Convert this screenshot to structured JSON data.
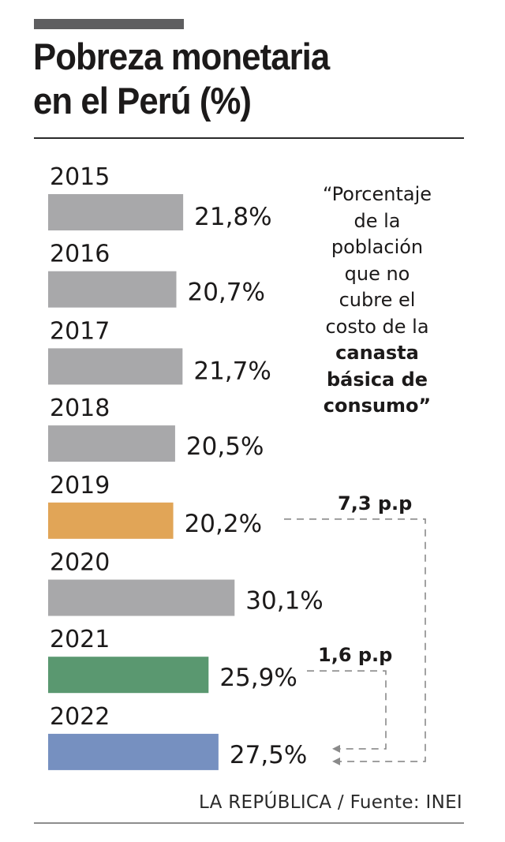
{
  "header": {
    "title_line1": "Pobreza monetaria",
    "title_line2": "en el Perú (%)"
  },
  "colors": {
    "default_bar": "#a8a8aa",
    "highlight_2019": "#e1a557",
    "highlight_2021": "#5a9870",
    "highlight_2022": "#7690c0",
    "connector": "#8a8a8a"
  },
  "quote": {
    "line1": "“Porcentaje",
    "line2": "de la",
    "line3": "población",
    "line4": "que no",
    "line5": "cubre el",
    "line6": "costo de la",
    "bold1": "canasta",
    "bold2": "básica de",
    "bold3": "consumo”"
  },
  "annotations": [
    {
      "label": "7,3 p.p",
      "from": "2019",
      "to": "2022"
    },
    {
      "label": "1,6 p.p",
      "from": "2021",
      "to": "2022"
    }
  ],
  "footer": {
    "source": "LA REPÚBLICA / Fuente: INEI"
  },
  "chart_data": {
    "type": "bar",
    "orientation": "horizontal",
    "title": "Pobreza monetaria en el Perú (%)",
    "xlabel": "",
    "ylabel": "",
    "categories": [
      "2015",
      "2016",
      "2017",
      "2018",
      "2019",
      "2020",
      "2021",
      "2022"
    ],
    "values": [
      21.8,
      20.7,
      21.7,
      20.5,
      20.2,
      30.1,
      25.9,
      27.5
    ],
    "value_labels": [
      "21,8%",
      "20,7%",
      "21,7%",
      "20,5%",
      "20,2%",
      "30,1%",
      "25,9%",
      "27,5%"
    ],
    "bar_colors": [
      "#a8a8aa",
      "#a8a8aa",
      "#a8a8aa",
      "#a8a8aa",
      "#e1a557",
      "#a8a8aa",
      "#5a9870",
      "#7690c0"
    ],
    "grid": false,
    "legend": "none",
    "annotations": [
      {
        "text": "7,3 p.p",
        "from": "2019",
        "to": "2022"
      },
      {
        "text": "1,6 p.p",
        "from": "2021",
        "to": "2022"
      }
    ]
  }
}
